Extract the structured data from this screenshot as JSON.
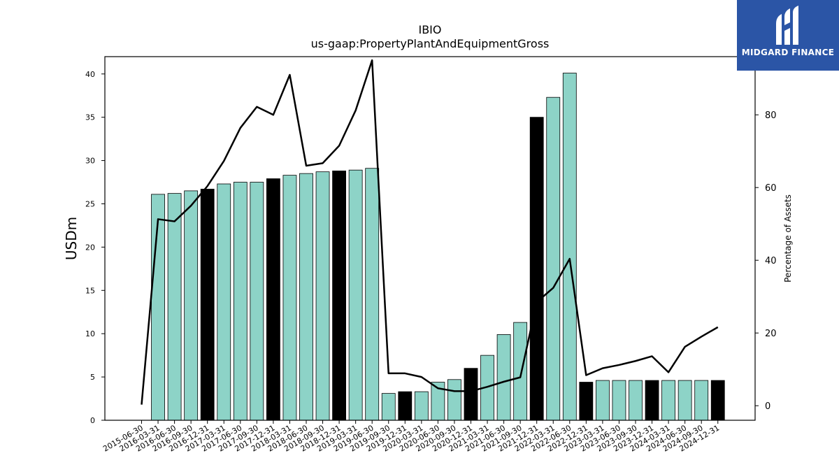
{
  "chart_data": {
    "type": "bar",
    "title": "IBIO",
    "subtitle": "us-gaap:PropertyPlantAndEquipmentGross",
    "ylabel": "USDm",
    "y2label": "Percentage of Assets",
    "ylim": [
      0,
      42
    ],
    "y2lim": [
      -4,
      96
    ],
    "yticks": [
      0,
      5,
      10,
      15,
      20,
      25,
      30,
      35,
      40
    ],
    "y2ticks": [
      0,
      20,
      40,
      60,
      80
    ],
    "categories": [
      "2015-06-30",
      "2016-03-31",
      "2016-06-30",
      "2016-09-30",
      "2016-12-31",
      "2017-03-31",
      "2017-06-30",
      "2017-09-30",
      "2017-12-31",
      "2018-03-31",
      "2018-06-30",
      "2018-09-30",
      "2018-12-31",
      "2019-03-31",
      "2019-06-30",
      "2019-09-30",
      "2019-12-31",
      "2020-03-31",
      "2020-06-30",
      "2020-09-30",
      "2020-12-31",
      "2021-03-31",
      "2021-06-30",
      "2021-09-30",
      "2021-12-31",
      "2022-03-31",
      "2022-06-30",
      "2022-12-31",
      "2023-03-31",
      "2023-06-30",
      "2023-09-30",
      "2023-12-31",
      "2024-03-31",
      "2024-06-30",
      "2024-09-30",
      "2024-12-31"
    ],
    "series": [
      {
        "kind": "bar",
        "values": [
          0,
          26.1,
          26.2,
          26.5,
          26.7,
          27.3,
          27.5,
          27.5,
          27.9,
          28.3,
          28.5,
          28.7,
          28.8,
          28.9,
          29.1,
          3.1,
          3.3,
          3.3,
          4.4,
          4.7,
          6.0,
          7.5,
          9.9,
          11.3,
          35.0,
          37.3,
          40.1,
          4.4,
          4.6,
          4.6,
          4.6,
          4.6,
          4.6,
          4.6,
          4.6,
          4.6
        ],
        "highlight": [
          false,
          false,
          false,
          false,
          true,
          false,
          false,
          false,
          true,
          false,
          false,
          false,
          true,
          false,
          false,
          false,
          true,
          false,
          false,
          false,
          true,
          false,
          false,
          false,
          true,
          false,
          false,
          true,
          false,
          false,
          false,
          true,
          false,
          false,
          false,
          true
        ]
      },
      {
        "kind": "line",
        "axis": "right",
        "values": [
          0.3,
          51.3,
          50.7,
          55.0,
          60.4,
          67.3,
          76.4,
          82.2,
          80.0,
          91.0,
          66.0,
          66.7,
          71.5,
          81.2,
          95.0,
          8.9,
          8.9,
          7.9,
          4.8,
          4.0,
          4.0,
          5.2,
          6.6,
          7.8,
          28.5,
          32.4,
          40.4,
          8.4,
          10.3,
          11.2,
          12.3,
          13.6,
          9.2,
          16.2,
          19.0,
          21.6
        ]
      }
    ],
    "colors": {
      "bar": "#8dd3c7",
      "highlight": "#000000",
      "line": "#000000"
    }
  },
  "logo": {
    "text": "MIDGARD FINANCE",
    "bg": "#2b55a6"
  }
}
